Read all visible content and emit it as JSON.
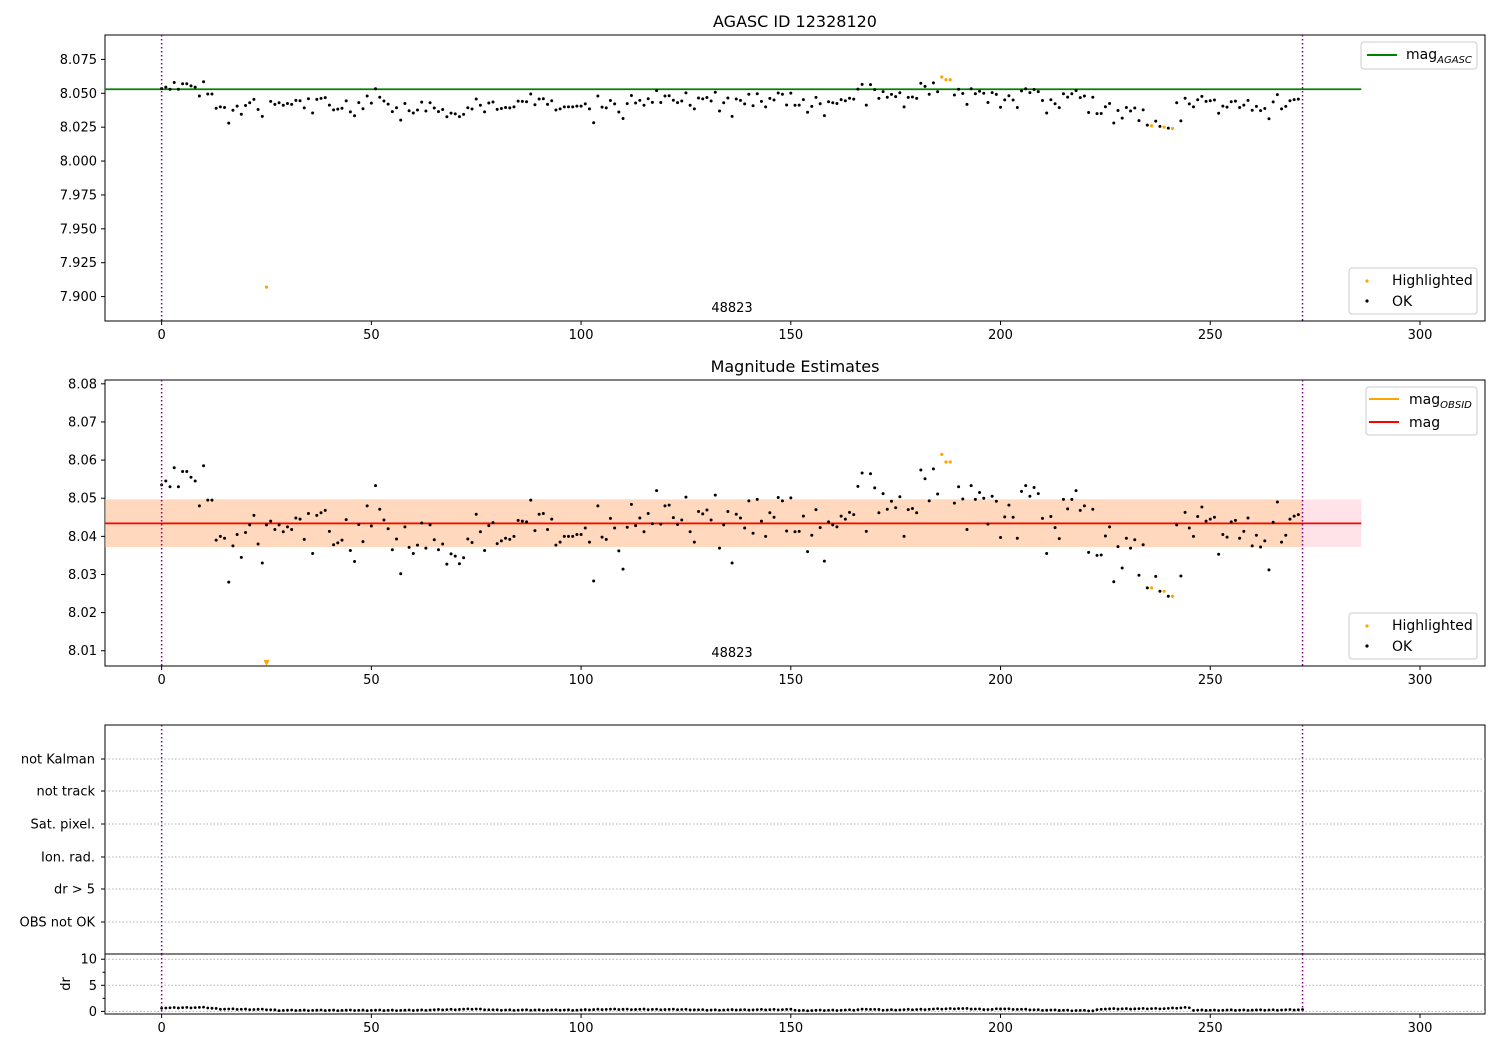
{
  "chart_data": [
    {
      "type": "scatter",
      "title": "AGASC ID 12328120",
      "annotation": "48823",
      "xlim": [
        -13.5,
        315.5
      ],
      "ylim": [
        7.882,
        8.093
      ],
      "xticks": [
        "0",
        "50",
        "100",
        "150",
        "200",
        "250",
        "300"
      ],
      "yticks": [
        "7.900",
        "7.925",
        "7.950",
        "7.975",
        "8.000",
        "8.025",
        "8.050",
        "8.075"
      ],
      "obs_boundaries": [
        0,
        272
      ],
      "mag_agasc": 8.053,
      "mag_line_xrange": [
        -13.5,
        286
      ],
      "legend_top": [
        {
          "label": "mag",
          "subscript": "AGASC",
          "color": "#008000"
        }
      ],
      "legend_bottom": [
        {
          "label": "Highlighted",
          "color": "#ffa500"
        },
        {
          "label": "OK",
          "color": "#000000"
        }
      ],
      "highlighted_points": [
        {
          "x": 25,
          "y": 7.907
        },
        {
          "x": 186,
          "y": 8.062
        },
        {
          "x": 187,
          "y": 8.06
        },
        {
          "x": 188,
          "y": 8.06
        },
        {
          "x": 236,
          "y": 8.026
        },
        {
          "x": 239,
          "y": 8.025
        },
        {
          "x": 241,
          "y": 8.024
        }
      ],
      "ok_series": "mags"
    },
    {
      "type": "scatter",
      "title": "Magnitude Estimates",
      "annotation": "48823",
      "xlim": [
        -13.5,
        315.5
      ],
      "ylim": [
        8.006,
        8.081
      ],
      "xticks": [
        "0",
        "50",
        "100",
        "150",
        "200",
        "250",
        "300"
      ],
      "yticks": [
        "8.01",
        "8.02",
        "8.03",
        "8.04",
        "8.05",
        "8.06",
        "8.07",
        "8.08"
      ],
      "obs_boundaries": [
        0,
        272
      ],
      "mag_obsid": 8.0434,
      "mag": 8.0434,
      "band": [
        8.0372,
        8.0497
      ],
      "band_xrange": [
        -13.5,
        286
      ],
      "legend_top": [
        {
          "label": "mag",
          "subscript": "OBSID",
          "color": "#ffa500"
        },
        {
          "label": "mag",
          "subscript": "",
          "color": "#ff0000"
        }
      ],
      "legend_bottom": [
        {
          "label": "Highlighted",
          "color": "#ffa500"
        },
        {
          "label": "OK",
          "color": "#000000"
        }
      ],
      "highlighted_points": [
        {
          "x": 186,
          "y": 8.0615
        },
        {
          "x": 187,
          "y": 8.0595
        },
        {
          "x": 188,
          "y": 8.0595
        },
        {
          "x": 236,
          "y": 8.0265
        },
        {
          "x": 239,
          "y": 8.0256
        },
        {
          "x": 241,
          "y": 8.0243
        }
      ],
      "offscale_marker": {
        "x": 25,
        "y": 8.0068
      },
      "ok_series": "mags"
    },
    {
      "type": "scatter",
      "title": "",
      "flag_labels": [
        "not Kalman",
        "not track",
        "Sat. pixel.",
        "Ion. rad.",
        "dr > 5",
        "OBS not OK"
      ],
      "xlim": [
        -13.5,
        315.5
      ],
      "xticks": [
        "0",
        "50",
        "100",
        "150",
        "200",
        "250",
        "300"
      ],
      "obs_boundaries": [
        0,
        272
      ]
    },
    {
      "type": "scatter",
      "title": "",
      "ylabel": "dr",
      "xlim": [
        -13.5,
        315.5
      ],
      "ylim": [
        -0.5,
        11
      ],
      "yticks": [
        "0",
        "5",
        "10"
      ],
      "xticks": [
        "0",
        "50",
        "100",
        "150",
        "200",
        "250",
        "300"
      ],
      "obs_boundaries": [
        0,
        272
      ],
      "dr_profile": [
        [
          0,
          0.6
        ],
        [
          10,
          0.7
        ],
        [
          14,
          0.4
        ],
        [
          25,
          0.3
        ],
        [
          28,
          0.15
        ],
        [
          60,
          0.15
        ],
        [
          75,
          0.4
        ],
        [
          80,
          0.2
        ],
        [
          100,
          0.2
        ],
        [
          105,
          0.35
        ],
        [
          125,
          0.3
        ],
        [
          130,
          0.2
        ],
        [
          150,
          0.3
        ],
        [
          152,
          0.1
        ],
        [
          165,
          0.2
        ],
        [
          168,
          0.4
        ],
        [
          172,
          0.2
        ],
        [
          180,
          0.3
        ],
        [
          190,
          0.5
        ],
        [
          198,
          0.3
        ],
        [
          200,
          0.45
        ],
        [
          210,
          0.2
        ],
        [
          220,
          0.1
        ],
        [
          222,
          0.05
        ],
        [
          224,
          0.4
        ],
        [
          240,
          0.5
        ],
        [
          245,
          0.7
        ],
        [
          246,
          0.15
        ],
        [
          262,
          0.2
        ],
        [
          272,
          0.25
        ]
      ]
    }
  ],
  "mags": [
    8.0535,
    8.0545,
    8.053,
    8.058,
    8.053,
    8.057,
    8.057,
    8.0555,
    8.0545,
    8.048,
    8.0585,
    8.0495,
    8.0495,
    8.039,
    8.04,
    8.0395,
    8.028,
    8.0375,
    8.0405,
    8.0345,
    8.041,
    8.043,
    8.0455,
    8.038,
    8.033,
    8.043,
    8.044,
    8.0418,
    8.043,
    8.0412,
    8.0425,
    8.0418,
    8.0448,
    8.0445,
    8.0392,
    8.046,
    8.0355,
    8.0455,
    8.0462,
    8.0468,
    8.0413,
    8.0378,
    8.0383,
    8.039,
    8.0444,
    8.0363,
    8.0334,
    8.0431,
    8.0386,
    8.048,
    8.0427,
    8.0533,
    8.0471,
    8.0443,
    8.042,
    8.0365,
    8.0393,
    8.0302,
    8.0425,
    8.0371,
    8.0355,
    8.0377,
    8.0435,
    8.0369,
    8.043,
    8.0391,
    8.0365,
    8.038,
    8.0327,
    8.0354,
    8.0348,
    8.0328,
    8.0344,
    8.0393,
    8.0384,
    8.0458,
    8.0412,
    8.0363,
    8.0428,
    8.0436,
    8.0381,
    8.0388,
    8.0395,
    8.0392,
    8.04,
    8.0442,
    8.044,
    8.0438,
    8.0495,
    8.0415,
    8.0458,
    8.046,
    8.0418,
    8.0445,
    8.0377,
    8.0385,
    8.04,
    8.04,
    8.04,
    8.0405,
    8.0405,
    8.0422,
    8.0385,
    8.0283,
    8.048,
    8.0398,
    8.0392,
    8.0447,
    8.0422,
    8.0362,
    8.0314,
    8.0424,
    8.0484,
    8.0428,
    8.0448,
    8.0412,
    8.046,
    8.0433,
    8.052,
    8.0432,
    8.048,
    8.0482,
    8.0449,
    8.0431,
    8.0443,
    8.0503,
    8.0412,
    8.0385,
    8.0465,
    8.0459,
    8.0469,
    8.0443,
    8.0508,
    8.0369,
    8.043,
    8.0465,
    8.033,
    8.0458,
    8.0448,
    8.0422,
    8.0493,
    8.0408,
    8.0497,
    8.044,
    8.04,
    8.0462,
    8.045,
    8.0502,
    8.0493,
    8.0414,
    8.0501,
    8.0412,
    8.0413,
    8.0453,
    8.036,
    8.0403,
    8.047,
    8.0423,
    8.0335,
    8.0438,
    8.043,
    8.0425,
    8.0453,
    8.0445,
    8.0463,
    8.0457,
    8.0531,
    8.0566,
    8.0413,
    8.0564,
    8.0527,
    8.0462,
    8.0512,
    8.0471,
    8.0492,
    8.0475,
    8.0504,
    8.04,
    8.047,
    8.0473,
    8.0462,
    8.0574,
    8.0551,
    8.0493,
    8.0577,
    8.0511,
    8.0615,
    8.0595,
    8.0595,
    8.0487,
    8.053,
    8.0498,
    8.0418,
    8.0533,
    8.0497,
    8.0515,
    8.05,
    8.0432,
    8.0505,
    8.0492,
    8.0397,
    8.0451,
    8.0482,
    8.045,
    8.0395,
    8.0518,
    8.0533,
    8.0505,
    8.0528,
    8.0512,
    8.0447,
    8.0355,
    8.0452,
    8.0423,
    8.0394,
    8.0497,
    8.0472,
    8.0497,
    8.052,
    8.0468,
    8.048,
    8.0358,
    8.0471,
    8.035,
    8.0351,
    8.0401,
    8.0425,
    8.0281,
    8.0373,
    8.0317,
    8.0395,
    8.0369,
    8.0391,
    8.0298,
    8.0378,
    8.0265,
    8.0295,
    8.0295,
    8.0256,
    8.0313,
    8.0243,
    8.0282,
    8.043,
    8.0296,
    8.0463,
    8.0422,
    8.04,
    8.0452,
    8.0477,
    8.044,
    8.0445,
    8.045,
    8.0353,
    8.0405,
    8.0398,
    8.0438,
    8.0442,
    8.0395,
    8.0413,
    8.0448,
    8.0375,
    8.0403,
    8.0372,
    8.0388,
    8.0312,
    8.0437,
    8.049,
    8.0385,
    8.0403,
    8.0445,
    8.0453,
    8.0457
  ]
}
